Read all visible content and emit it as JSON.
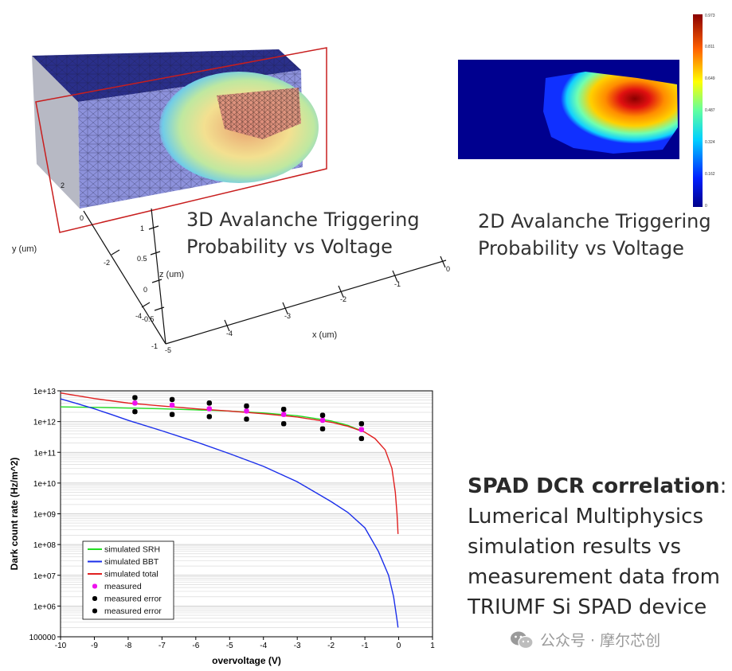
{
  "figure_3d": {
    "caption_line1": "3D Avalanche Triggering",
    "caption_line2": "Probability vs Voltage",
    "y_label": "y (um)",
    "z_label": "z (um)",
    "x_label": "x (um)",
    "x_ticks": [
      "-5",
      "-4",
      "-3",
      "-2",
      "-1",
      "0"
    ],
    "y_ticks": [
      "-4",
      "-2",
      "0",
      "2"
    ],
    "z_ticks": [
      "-1",
      "-0.5",
      "0",
      "0.5",
      "1"
    ]
  },
  "figure_2d": {
    "caption_line1": "2D Avalanche Triggering",
    "caption_line2": "Probability vs Voltage",
    "colorbar_ticks": [
      "0.973",
      "0.811",
      "0.649",
      "0.487",
      "0.324",
      "0.162",
      "0"
    ]
  },
  "description": {
    "bold": "SPAD DCR correlation",
    "after_bold": ":",
    "line2": "Lumerical Multiphysics",
    "line3": "simulation results vs",
    "line4": "measurement data from",
    "line5": "TRIUMF Si SPAD device"
  },
  "watermark": {
    "text": "公众号 · 摩尔芯创",
    "icon": "wechat-icon"
  },
  "chart_data": {
    "type": "line",
    "xlabel": "overvoltage (V)",
    "ylabel": "Dark count rate (Hz/m^2)",
    "xlim": [
      -10,
      1
    ],
    "ylim": [
      100000,
      10000000000000
    ],
    "yscale": "log",
    "grid": true,
    "legend_position": "bottom-left",
    "x_ticks": [
      "-10",
      "-9",
      "-8",
      "-7",
      "-6",
      "-5",
      "-4",
      "-3",
      "-2",
      "-1",
      "0",
      "1"
    ],
    "y_ticks": [
      {
        "value": 10000000000000.0,
        "label": "1e+13"
      },
      {
        "value": 1000000000000.0,
        "label": "1e+12"
      },
      {
        "value": 100000000000.0,
        "label": "1e+11"
      },
      {
        "value": 10000000000.0,
        "label": "1e+10"
      },
      {
        "value": 1000000000.0,
        "label": "1e+09"
      },
      {
        "value": 100000000.0,
        "label": "1e+08"
      },
      {
        "value": 10000000.0,
        "label": "1e+07"
      },
      {
        "value": 1000000.0,
        "label": "1e+06"
      },
      {
        "value": 100000.0,
        "label": "100000"
      }
    ],
    "colors": {
      "srh": "#22dd22",
      "bbt": "#1a2eea",
      "total": "#e02020",
      "measured": "#ee11ee",
      "error": "#000000"
    },
    "series": [
      {
        "name": "simulated SRH",
        "type": "line",
        "color": "#22dd22",
        "x": [
          -10,
          -9,
          -8,
          -7,
          -6,
          -5,
          -4,
          -3,
          -2,
          -1.5,
          -1.1
        ],
        "y": [
          3000000000000.0,
          2900000000000.0,
          2750000000000.0,
          2600000000000.0,
          2400000000000.0,
          2200000000000.0,
          1900000000000.0,
          1550000000000.0,
          1050000000000.0,
          750000000000.0,
          500000000000.0
        ]
      },
      {
        "name": "simulated BBT",
        "type": "line",
        "color": "#1a2eea",
        "x": [
          -10,
          -9.5,
          -9,
          -8.5,
          -8,
          -7,
          -6,
          -5,
          -4,
          -3,
          -2,
          -1.5,
          -1,
          -0.6,
          -0.3,
          -0.15,
          -0.08,
          -0.04,
          -0.02
        ],
        "y": [
          5500000000000.0,
          3800000000000.0,
          2600000000000.0,
          1700000000000.0,
          1100000000000.0,
          500000000000.0,
          220000000000.0,
          90000000000.0,
          35000000000.0,
          11000000000.0,
          2500000000.0,
          1100000000.0,
          350000000.0,
          60000000.0,
          10000000.0,
          2000000.0,
          600000.0,
          300000.0,
          200000.0
        ]
      },
      {
        "name": "simulated total",
        "type": "line",
        "color": "#e02020",
        "x": [
          -10,
          -9,
          -8,
          -7,
          -6,
          -5,
          -4,
          -3,
          -2,
          -1.5,
          -1,
          -0.7,
          -0.4,
          -0.2,
          -0.1,
          -0.05,
          -0.03,
          -0.02
        ],
        "y": [
          8500000000000.0,
          5600000000000.0,
          4000000000000.0,
          3200000000000.0,
          2600000000000.0,
          2200000000000.0,
          1800000000000.0,
          1400000000000.0,
          950000000000.0,
          700000000000.0,
          450000000000.0,
          280000000000.0,
          120000000000.0,
          30000000000.0,
          5000000000.0,
          1000000000.0,
          400000000.0,
          220000000.0
        ]
      },
      {
        "name": "measured",
        "type": "scatter",
        "color": "#ee11ee",
        "x": [
          -7.8,
          -6.7,
          -5.6,
          -4.5,
          -3.4,
          -2.25,
          -1.1
        ],
        "y": [
          4000000000000.0,
          3400000000000.0,
          2600000000000.0,
          2200000000000.0,
          1700000000000.0,
          1100000000000.0,
          550000000000.0
        ]
      },
      {
        "name": "measured error",
        "type": "scatter",
        "color": "#000000",
        "x": [
          -7.8,
          -6.7,
          -5.6,
          -4.5,
          -3.4,
          -2.25,
          -1.1
        ],
        "y": [
          6000000000000.0,
          5200000000000.0,
          4000000000000.0,
          3200000000000.0,
          2500000000000.0,
          1600000000000.0,
          850000000000.0
        ]
      },
      {
        "name": "measured error",
        "type": "scatter",
        "color": "#000000",
        "x": [
          -7.8,
          -6.7,
          -5.6,
          -4.5,
          -3.4,
          -2.25,
          -1.1
        ],
        "y": [
          2100000000000.0,
          1700000000000.0,
          1450000000000.0,
          1200000000000.0,
          850000000000.0,
          580000000000.0,
          280000000000.0
        ]
      }
    ]
  }
}
